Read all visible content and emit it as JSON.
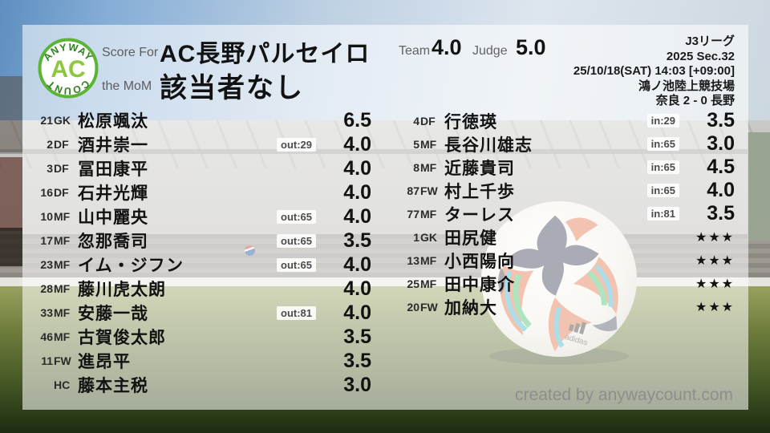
{
  "logo": {
    "arc_top": "ANYWAY",
    "center": "AC",
    "arc_bottom": "COUNT"
  },
  "header": {
    "score_for_label": "Score For",
    "team_name": "AC長野パルセイロ",
    "mom_label": "the MoM",
    "mom_value": "該当者なし",
    "team_label": "Team",
    "team_score": "4.0",
    "judge_label": "Judge",
    "judge_score": "5.0"
  },
  "match_info": {
    "lines": [
      "J3リーグ",
      "2025 Sec.32",
      "25/10/18(SAT) 14:03 [+09:00]",
      "鴻ノ池陸上競技場",
      "奈良 2 - 0 長野"
    ]
  },
  "players_left": [
    {
      "num": "21",
      "pos": "GK",
      "name": "松原颯汰",
      "sub": "",
      "score": "6.5"
    },
    {
      "num": "2",
      "pos": "DF",
      "name": "酒井崇一",
      "sub": "out:29",
      "score": "4.0"
    },
    {
      "num": "3",
      "pos": "DF",
      "name": "冨田康平",
      "sub": "",
      "score": "4.0"
    },
    {
      "num": "16",
      "pos": "DF",
      "name": "石井光輝",
      "sub": "",
      "score": "4.0"
    },
    {
      "num": "10",
      "pos": "MF",
      "name": "山中麗央",
      "sub": "out:65",
      "score": "4.0"
    },
    {
      "num": "17",
      "pos": "MF",
      "name": "忽那喬司",
      "sub": "out:65",
      "score": "3.5"
    },
    {
      "num": "23",
      "pos": "MF",
      "name": "イム・ジフン",
      "sub": "out:65",
      "score": "4.0"
    },
    {
      "num": "28",
      "pos": "MF",
      "name": "藤川虎太朗",
      "sub": "",
      "score": "4.0"
    },
    {
      "num": "33",
      "pos": "MF",
      "name": "安藤一哉",
      "sub": "out:81",
      "score": "4.0"
    },
    {
      "num": "46",
      "pos": "MF",
      "name": "古賀俊太郎",
      "sub": "",
      "score": "3.5"
    },
    {
      "num": "11",
      "pos": "FW",
      "name": "進昂平",
      "sub": "",
      "score": "3.5"
    },
    {
      "num": "",
      "pos": "HC",
      "name": "藤本主税",
      "sub": "",
      "score": "3.0"
    }
  ],
  "players_right": [
    {
      "num": "4",
      "pos": "DF",
      "name": "行徳瑛",
      "sub": "in:29",
      "score": "3.5"
    },
    {
      "num": "5",
      "pos": "MF",
      "name": "長谷川雄志",
      "sub": "in:65",
      "score": "3.0"
    },
    {
      "num": "8",
      "pos": "MF",
      "name": "近藤貴司",
      "sub": "in:65",
      "score": "4.5"
    },
    {
      "num": "87",
      "pos": "FW",
      "name": "村上千歩",
      "sub": "in:65",
      "score": "4.0"
    },
    {
      "num": "77",
      "pos": "MF",
      "name": "ターレス",
      "sub": "in:81",
      "score": "3.5"
    },
    {
      "num": "1",
      "pos": "GK",
      "name": "田尻健",
      "sub": "",
      "score": "★★★"
    },
    {
      "num": "13",
      "pos": "MF",
      "name": "小西陽向",
      "sub": "",
      "score": "★★★"
    },
    {
      "num": "25",
      "pos": "MF",
      "name": "田中康介",
      "sub": "",
      "score": "★★★"
    },
    {
      "num": "20",
      "pos": "FW",
      "name": "加納大",
      "sub": "",
      "score": "★★★"
    }
  ],
  "footer": {
    "credit": "created by anywaycount.com"
  },
  "colors": {
    "logo_green": "#8dc63f",
    "logo_ring": "#5cb434",
    "logo_arc_green": "#2f8220",
    "text_dark": "#121212",
    "label_gray": "#5d5d5d",
    "credit_gray": "#8e8e8e",
    "badge_bg": "#ffffff"
  }
}
